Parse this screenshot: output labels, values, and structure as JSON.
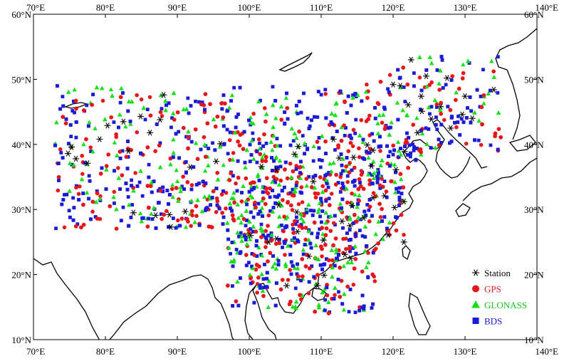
{
  "map": {
    "lon_range": [
      70,
      140
    ],
    "lat_range": [
      10,
      60
    ],
    "x_ticks": [
      {
        "value": 70,
        "label": "70°E"
      },
      {
        "value": 80,
        "label": "80°E"
      },
      {
        "value": 90,
        "label": "90°E"
      },
      {
        "value": 100,
        "label": "100°E"
      },
      {
        "value": 110,
        "label": "110°E"
      },
      {
        "value": 120,
        "label": "120°E"
      },
      {
        "value": 130,
        "label": "130°E"
      },
      {
        "value": 140,
        "label": "140°E"
      }
    ],
    "y_ticks": [
      {
        "value": 60,
        "label": "60°N"
      },
      {
        "value": 50,
        "label": "50°N"
      },
      {
        "value": 40,
        "label": "40°N"
      },
      {
        "value": 30,
        "label": "30°N"
      },
      {
        "value": 20,
        "label": "20°N"
      },
      {
        "value": 10,
        "label": "10°N"
      }
    ],
    "legend_position": "bottom-right",
    "legend": [
      {
        "key": "station",
        "label": "Station",
        "marker": "asterisk",
        "color": "#000000",
        "text_color": "#000000"
      },
      {
        "key": "gps",
        "label": "GPS",
        "marker": "circle",
        "color": "#e8161b",
        "text_color": "#e8161b"
      },
      {
        "key": "glonass",
        "label": "GLONASS",
        "marker": "triangle",
        "color": "#16e01a",
        "text_color": "#16c41a"
      },
      {
        "key": "bds",
        "label": "BDS",
        "marker": "square",
        "color": "#1a1ad8",
        "text_color": "#1a1ad8"
      }
    ],
    "stations": [
      [
        74.8,
        38.6
      ],
      [
        75.3,
        39.6
      ],
      [
        75.9,
        37.8
      ],
      [
        77.5,
        37.1
      ],
      [
        79.2,
        40.8
      ],
      [
        80.3,
        42.9
      ],
      [
        82.5,
        43.5
      ],
      [
        84.9,
        44.3
      ],
      [
        87.6,
        43.8
      ],
      [
        88.1,
        47.6
      ],
      [
        83.2,
        39.0
      ],
      [
        86.2,
        41.8
      ],
      [
        83.9,
        29.5
      ],
      [
        87.0,
        29.1
      ],
      [
        88.9,
        29.2
      ],
      [
        89.1,
        27.3
      ],
      [
        91.1,
        29.7
      ],
      [
        91.8,
        36.5
      ],
      [
        95.4,
        37.4
      ],
      [
        101.7,
        36.6
      ],
      [
        103.8,
        36.1
      ],
      [
        106.3,
        38.5
      ],
      [
        108.9,
        34.3
      ],
      [
        104.1,
        30.7
      ],
      [
        106.6,
        29.6
      ],
      [
        102.7,
        25.0
      ],
      [
        106.7,
        26.6
      ],
      [
        108.3,
        22.8
      ],
      [
        110.3,
        25.3
      ],
      [
        113.3,
        23.1
      ],
      [
        114.1,
        22.5
      ],
      [
        110.4,
        19.9
      ],
      [
        105.2,
        18.3
      ],
      [
        109.5,
        18.3
      ],
      [
        112.9,
        28.2
      ],
      [
        114.3,
        30.6
      ],
      [
        117.2,
        31.8
      ],
      [
        115.9,
        28.7
      ],
      [
        119.3,
        26.1
      ],
      [
        121.5,
        25.0
      ],
      [
        120.2,
        30.3
      ],
      [
        121.5,
        31.2
      ],
      [
        118.8,
        32.1
      ],
      [
        117.0,
        36.7
      ],
      [
        120.4,
        36.1
      ],
      [
        116.4,
        39.9
      ],
      [
        117.2,
        39.1
      ],
      [
        114.5,
        38.0
      ],
      [
        112.5,
        37.9
      ],
      [
        111.7,
        40.8
      ],
      [
        106.8,
        39.7
      ],
      [
        123.4,
        41.8
      ],
      [
        121.6,
        38.9
      ],
      [
        125.3,
        43.9
      ],
      [
        126.6,
        45.8
      ],
      [
        129.6,
        44.6
      ],
      [
        122.1,
        46.1
      ],
      [
        120.0,
        49.2
      ],
      [
        123.9,
        47.4
      ],
      [
        127.5,
        50.2
      ],
      [
        124.6,
        50.5
      ],
      [
        122.5,
        53.0
      ],
      [
        130.0,
        47.4
      ],
      [
        134.0,
        48.4
      ],
      [
        131.0,
        44.0
      ],
      [
        128.0,
        42.5
      ],
      [
        121.0,
        49.0
      ],
      [
        124.0,
        45.1
      ],
      [
        96.0,
        40.1
      ],
      [
        103.8,
        25.5
      ],
      [
        100.2,
        26.0
      ],
      [
        114.0,
        27.5
      ]
    ]
  }
}
